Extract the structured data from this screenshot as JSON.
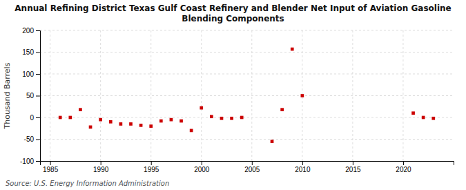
{
  "chart_data": {
    "type": "scatter",
    "title": "Annual Refining District Texas Gulf Coast Refinery and Blender Net Input of Aviation Gasoline\nBlending Components",
    "ylabel": "Thousand Barrels",
    "annotations": [
      "Source: U.S. Energy Information Administration"
    ],
    "x": [
      1986,
      1987,
      1988,
      1989,
      1990,
      1991,
      1992,
      1993,
      1994,
      1995,
      1996,
      1997,
      1998,
      1999,
      2000,
      2001,
      2002,
      2003,
      2004,
      2007,
      2008,
      2009,
      2010,
      2021,
      2022,
      2023
    ],
    "values": [
      0,
      0,
      18,
      -22,
      -5,
      -10,
      -15,
      -15,
      -18,
      -20,
      -8,
      -5,
      -8,
      -30,
      22,
      2,
      -2,
      -2,
      0,
      -55,
      18,
      157,
      50,
      10,
      0,
      -2
    ],
    "color": "#cc0000",
    "marker": "square",
    "xlim": [
      1984,
      2025
    ],
    "xticks": [
      1985,
      1990,
      1995,
      2000,
      2005,
      2010,
      2015,
      2020
    ],
    "ylim": [
      -100,
      200
    ],
    "yticks": [
      -100,
      -50,
      0,
      50,
      100,
      150,
      200
    ],
    "grid": true
  }
}
